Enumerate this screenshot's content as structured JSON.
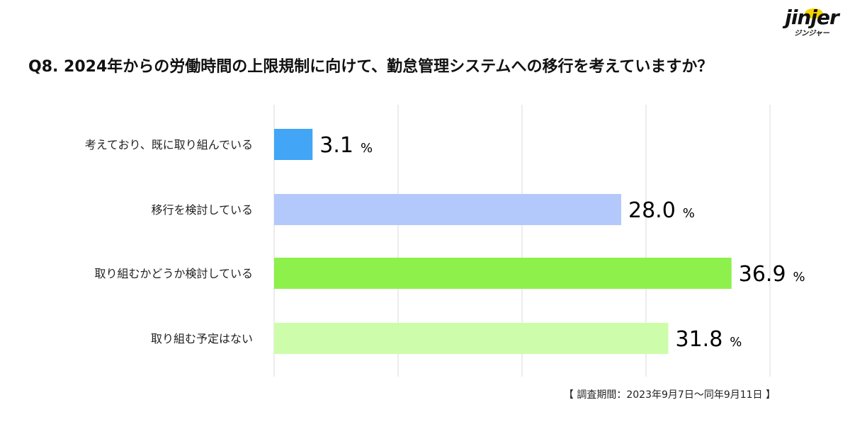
{
  "logo": {
    "text": "jinjer",
    "subtext": "ジンジャー"
  },
  "source_note": "【 調査期間：2023年9月7日～同年9月11日 】",
  "chart_data": {
    "type": "bar",
    "orientation": "horizontal",
    "title": "Q8. 2024年からの労働時間の上限規制に向けて、勤怠管理システムへの移行を考えていますか？",
    "categories": [
      "考えており、既に取り組んでいる",
      "移行を検討している",
      "取り組むかどうか検討している",
      "取り組む予定はない"
    ],
    "values": [
      3.1,
      28.0,
      36.9,
      31.8
    ],
    "value_labels": [
      "3.1",
      "28.0",
      "36.9",
      "31.8"
    ],
    "unit": "%",
    "colors": [
      "#42a5f5",
      "#b3c9fb",
      "#8ef04b",
      "#cdfdaa"
    ],
    "xlim": [
      0,
      40
    ],
    "grid_ticks": [
      0,
      10,
      20,
      30,
      40
    ],
    "grid": true,
    "legend": false
  }
}
